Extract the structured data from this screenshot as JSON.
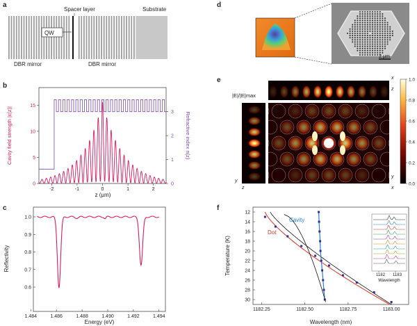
{
  "panels": {
    "a": {
      "letter": "a",
      "labels": {
        "spacer": "Spacer layer",
        "substrate": "Substrate",
        "qw": "QW",
        "dbr_left": "DBR mirror",
        "dbr_right": "DBR mirror"
      }
    },
    "b": {
      "letter": "b",
      "ylabel_left": "Cavity field strength |ε(z)|",
      "ylabel_right": "Refractive index n(z)",
      "xlabel": "z (µm)",
      "xticks": [
        "-2",
        "-1",
        "0",
        "1",
        "2"
      ],
      "yticks_left": [
        "0",
        "5",
        "10",
        "15"
      ],
      "yticks_right": [
        "0",
        "1",
        "2",
        "3"
      ]
    },
    "c": {
      "letter": "c",
      "ylabel": "Reflectivity",
      "xlabel": "Energy (eV)",
      "xticks": [
        "1.484",
        "1.486",
        "1.488",
        "1.490",
        "1.492",
        "1.494"
      ],
      "yticks": [
        "0.6",
        "0.7",
        "0.8",
        "0.9",
        "1.0"
      ]
    },
    "d": {
      "letter": "d",
      "scalebar": "2 µm"
    },
    "e": {
      "letter": "e",
      "field_label": "|E|/|E|max",
      "colorbar_ticks": [
        "0.0",
        "0.2",
        "0.4",
        "0.6",
        "0.8",
        "1.0"
      ],
      "axes": {
        "x": "x",
        "y": "y",
        "z": "z"
      }
    },
    "f": {
      "letter": "f",
      "ylabel": "Temperature (K)",
      "xlabel": "Wavelength (nm)",
      "xticks": [
        "1182.25",
        "1182.50",
        "1182.75",
        "1183.00"
      ],
      "yticks": [
        "12",
        "14",
        "16",
        "18",
        "20",
        "22",
        "24",
        "26",
        "28",
        "30"
      ],
      "cavity_label": "Cavity",
      "dot_label": "Dot",
      "inset_xticks": [
        "1182",
        "1183"
      ],
      "inset_xlabel": "Wavelength"
    }
  },
  "chart_data": [
    {
      "type": "line",
      "panel": "b",
      "xlabel": "z (µm)",
      "ylabel": "Cavity field strength |ε(z)|",
      "xlim": [
        -2.5,
        2.5
      ],
      "ylim": [
        0,
        16.5
      ],
      "series": [
        {
          "name": "",
          "envelope_peak": 16,
          "decay_length_um": 0.8,
          "oscillation_period_um": 0.17
        },
        {
          "name": "",
          "x": [
            -2.5,
            -1.9,
            -1.9,
            2.5
          ],
          "values_right_axis": [
            0.6,
            0.6,
            3.5,
            3.5
          ]
        }
      ]
    },
    {
      "type": "line",
      "panel": "c",
      "xlabel": "Energy (eV)",
      "ylabel": "Reflectivity",
      "xlim": [
        1.484,
        1.494
      ],
      "ylim": [
        0.55,
        1.05
      ],
      "dips": [
        {
          "x": 1.4862,
          "y": 0.6
        },
        {
          "x": 1.4926,
          "y": 0.725
        }
      ],
      "baseline": 1.0
    },
    {
      "type": "scatter",
      "panel": "f",
      "xlabel": "Wavelength (nm)",
      "ylabel": "Temperature (K)",
      "xlim": [
        1182.2,
        1183.1
      ],
      "ylim": [
        11,
        31
      ],
      "y_inverted": true,
      "series": [
        {
          "name": "Cavity",
          "x": [
            1182.58,
            1182.582,
            1182.585,
            1182.588,
            1182.59,
            1182.595,
            1182.6,
            1182.605,
            1182.61,
            1182.615
          ],
          "y": [
            12,
            14,
            16,
            18,
            20,
            22,
            24,
            26,
            28,
            30
          ]
        },
        {
          "name": "Dot",
          "x": [
            1182.27,
            1182.33,
            1182.4,
            1182.48,
            1182.56,
            1182.64,
            1182.72,
            1182.8,
            1182.9,
            1183.0
          ],
          "y": [
            13,
            15,
            17,
            19,
            21,
            23,
            25,
            26.5,
            28.5,
            30.5
          ]
        }
      ]
    }
  ]
}
